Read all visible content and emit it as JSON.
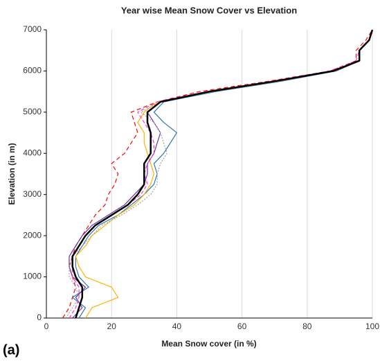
{
  "chart_data": {
    "type": "line",
    "title": "Year wise Mean Snow Cover vs Elevation",
    "x_label": "Mean Snow cover (in %)",
    "y_label": "Elevation (in m)",
    "annotation": "(a)",
    "elevation": [
      0,
      250,
      500,
      750,
      1000,
      1250,
      1500,
      1750,
      2000,
      2250,
      2500,
      2750,
      3000,
      3250,
      3500,
      3750,
      4000,
      4250,
      4500,
      4750,
      5000,
      5250,
      5500,
      5750,
      6000,
      6250,
      6500,
      6750,
      7000
    ],
    "series": [
      {
        "color": "#ff0000",
        "dash": "6,4",
        "values": [
          5,
          7,
          8,
          9,
          8,
          7,
          8,
          9,
          11,
          13,
          15,
          18,
          19,
          21,
          22,
          20,
          24,
          26,
          28,
          27,
          26,
          34,
          47,
          68,
          87,
          95,
          95,
          98,
          100
        ]
      },
      {
        "color": "#2e75b6",
        "dash": "",
        "values": [
          10,
          12,
          8,
          13,
          10,
          9,
          9,
          11,
          13,
          16,
          22,
          26,
          30,
          33,
          34,
          33,
          36,
          38,
          40,
          36,
          33,
          36,
          52,
          72,
          89,
          96,
          96,
          99,
          100
        ]
      },
      {
        "color": "#ffb000",
        "dash": "",
        "values": [
          12,
          14,
          22,
          20,
          12,
          10,
          9,
          12,
          14,
          18,
          22,
          27,
          30,
          32,
          33,
          32,
          31,
          30,
          30,
          28,
          30,
          34,
          51,
          71,
          88,
          96,
          96,
          99,
          100
        ]
      },
      {
        "color": "#7030a0",
        "dash": "",
        "values": [
          8,
          11,
          9,
          12,
          8,
          7,
          7,
          9,
          11,
          14,
          19,
          24,
          27,
          30,
          31,
          31,
          33,
          34,
          35,
          33,
          31,
          35,
          50,
          70,
          88,
          96,
          96,
          99,
          100
        ]
      },
      {
        "color": "#ff33cc",
        "dash": "5,3",
        "values": [
          7,
          9,
          10,
          10,
          8,
          8,
          8,
          10,
          12,
          15,
          20,
          25,
          29,
          31,
          30,
          31,
          33,
          33,
          32,
          30,
          28,
          34,
          49,
          69,
          87,
          95,
          96,
          99,
          100
        ]
      },
      {
        "color": "#a0a0a0",
        "dash": "2,2",
        "values": [
          6,
          8,
          10,
          9,
          7,
          7,
          8,
          11,
          14,
          17,
          23,
          28,
          32,
          34,
          34,
          35,
          37,
          36,
          35,
          33,
          29,
          35,
          51,
          70,
          89,
          96,
          96,
          99,
          100
        ]
      },
      {
        "color": "#000000",
        "dash": "",
        "width": 2.5,
        "values": [
          9,
          10,
          11,
          11,
          9,
          8,
          8,
          10,
          12,
          15,
          20,
          25,
          28,
          30,
          30,
          30,
          32,
          32,
          32,
          31,
          31,
          35,
          50,
          70,
          88,
          96,
          96,
          99,
          100
        ]
      }
    ],
    "xlim": [
      0,
      100
    ],
    "xticks": [
      0,
      20,
      40,
      60,
      80,
      100
    ],
    "ylim": [
      0,
      7000
    ],
    "yticks": [
      0,
      1000,
      2000,
      3000,
      4000,
      5000,
      6000,
      7000
    ],
    "grid": "x"
  }
}
